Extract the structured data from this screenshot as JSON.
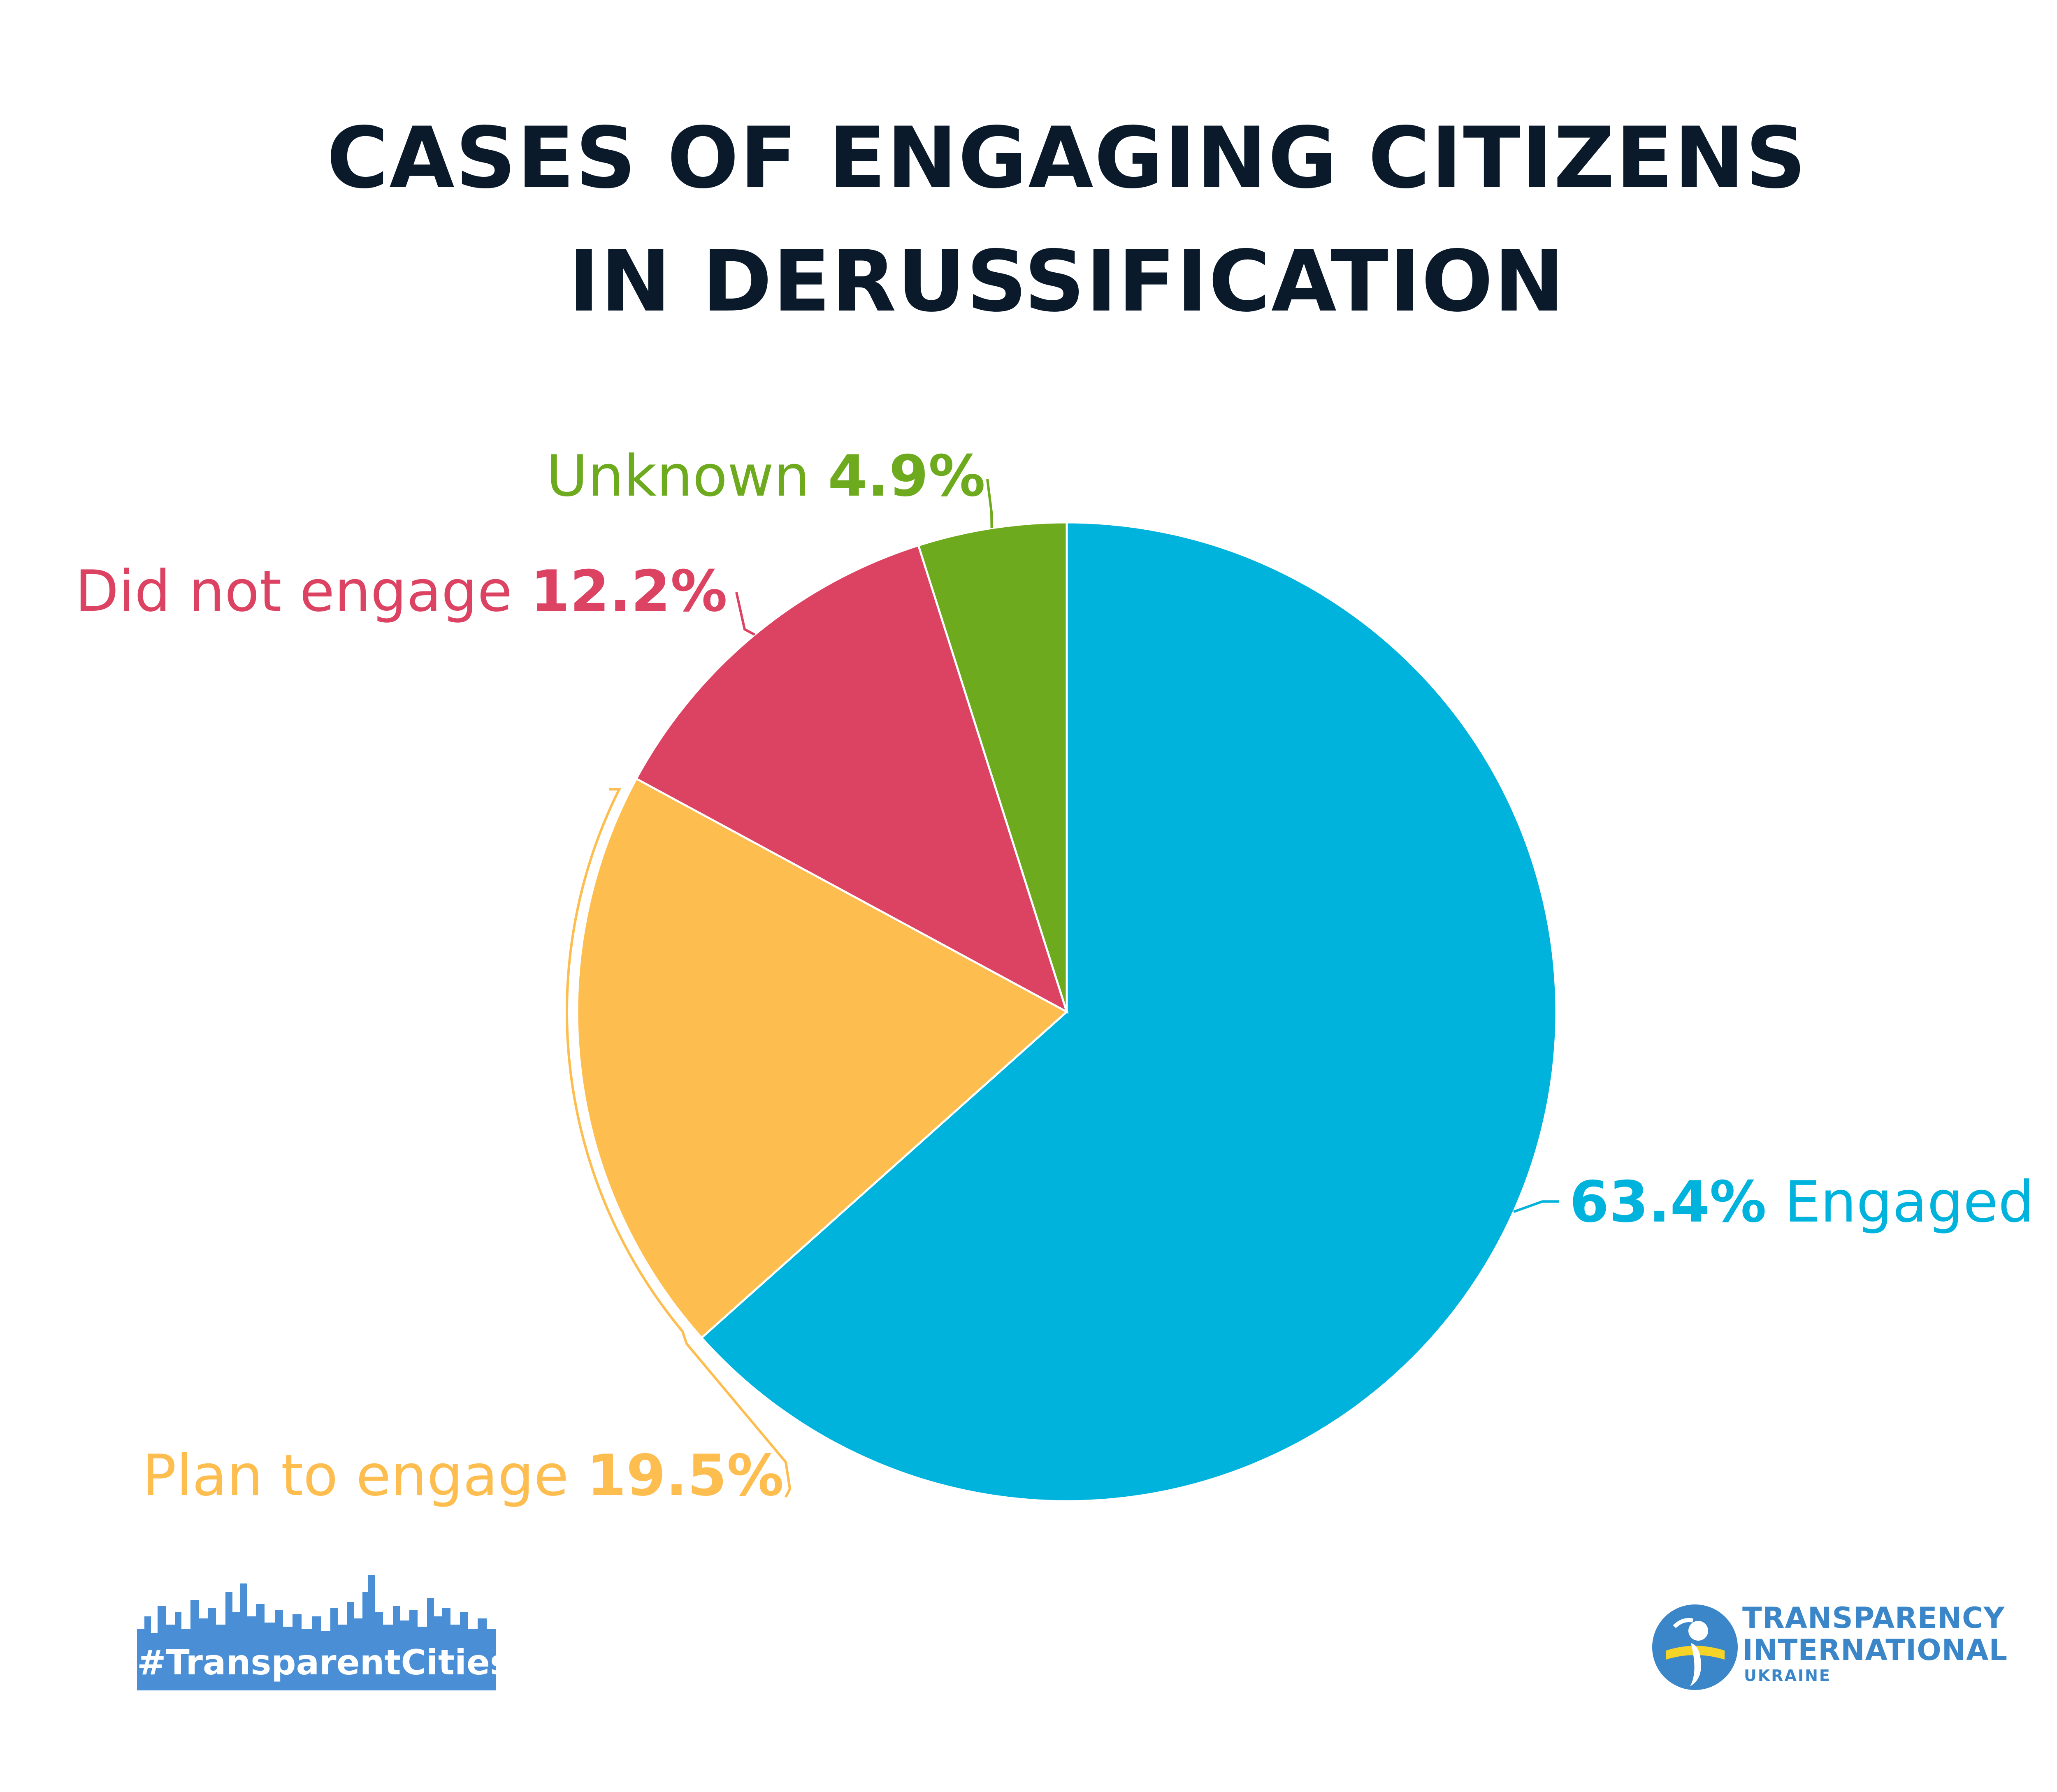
{
  "title_lines": [
    "CASES OF ENGAGING CITIZENS",
    "IN DERUSSIFICATION"
  ],
  "chart_data": {
    "type": "pie",
    "title": "CASES OF ENGAGING CITIZENS IN DERUSSIFICATION",
    "slices": [
      {
        "label": "Engaged",
        "value": 63.4,
        "value_text": "63.4%",
        "color": "#00b3dc"
      },
      {
        "label": "Plan to engage",
        "value": 19.5,
        "value_text": "19.5%",
        "color": "#fdbd4f"
      },
      {
        "label": "Did not engage",
        "value": 12.2,
        "value_text": "12.2%",
        "color": "#dc4363"
      },
      {
        "label": "Unknown",
        "value": 4.9,
        "value_text": "4.9%",
        "color": "#6eaa1d"
      }
    ]
  },
  "branding": {
    "hashtag": "#TransparentCities",
    "org_line1": "TRANSPARENCY",
    "org_line2": "INTERNATIONAL",
    "org_line3": "UKRAINE"
  }
}
